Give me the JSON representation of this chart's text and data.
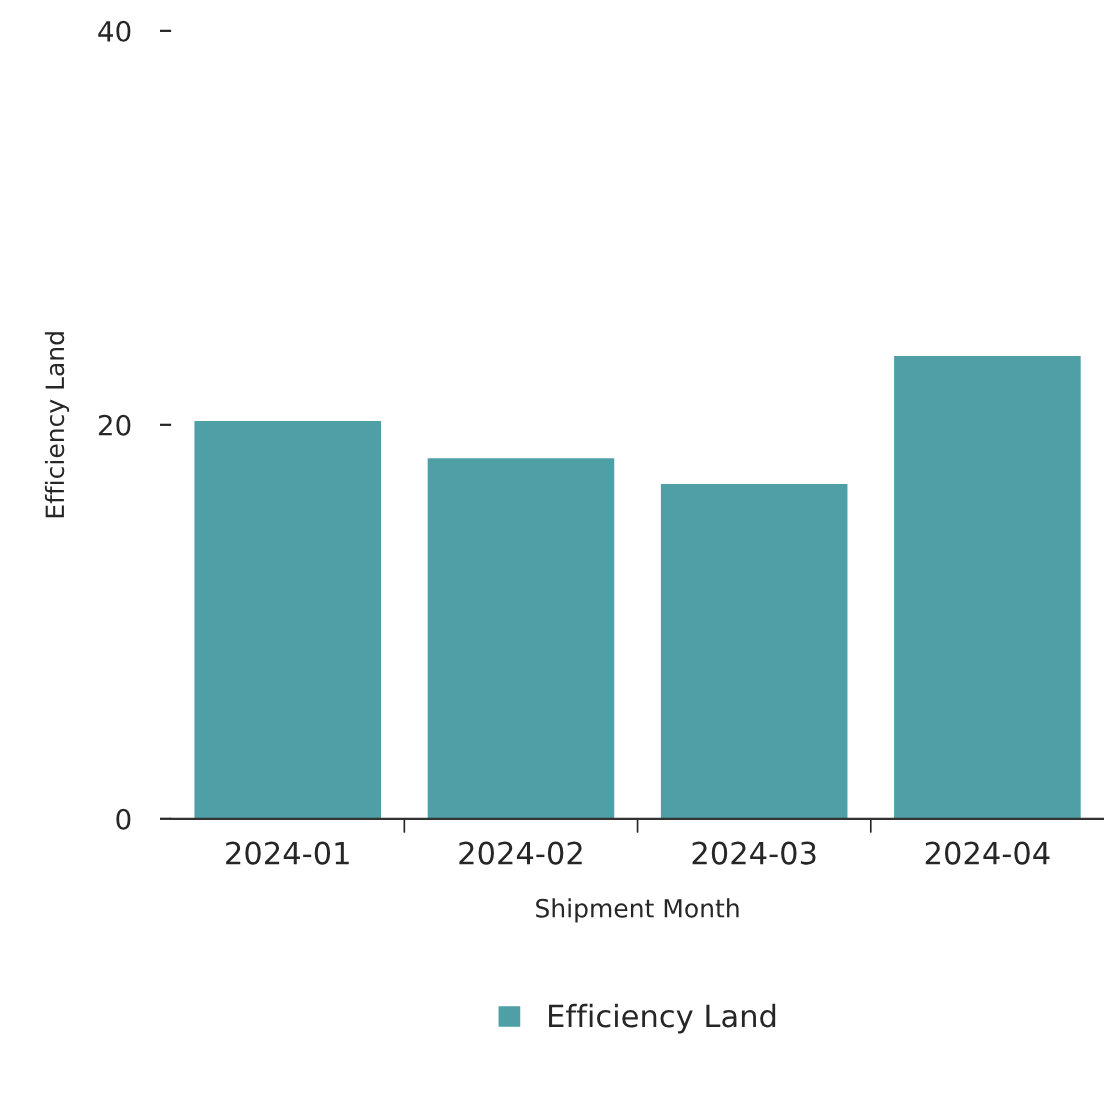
{
  "chart_data": {
    "type": "bar",
    "xlabel": "Shipment Month",
    "ylabel": "Efficiency Land",
    "categories": [
      "2024-01",
      "2024-02",
      "2024-03",
      "2024-04"
    ],
    "series": [
      {
        "name": "Efficiency Land",
        "color": "#4e9fa6",
        "values": [
          20.2,
          18.3,
          17.0,
          23.5
        ]
      }
    ],
    "ylim": [
      0,
      40
    ],
    "yticks": [
      0,
      20,
      40
    ],
    "grid": false,
    "legend": "bottom"
  }
}
